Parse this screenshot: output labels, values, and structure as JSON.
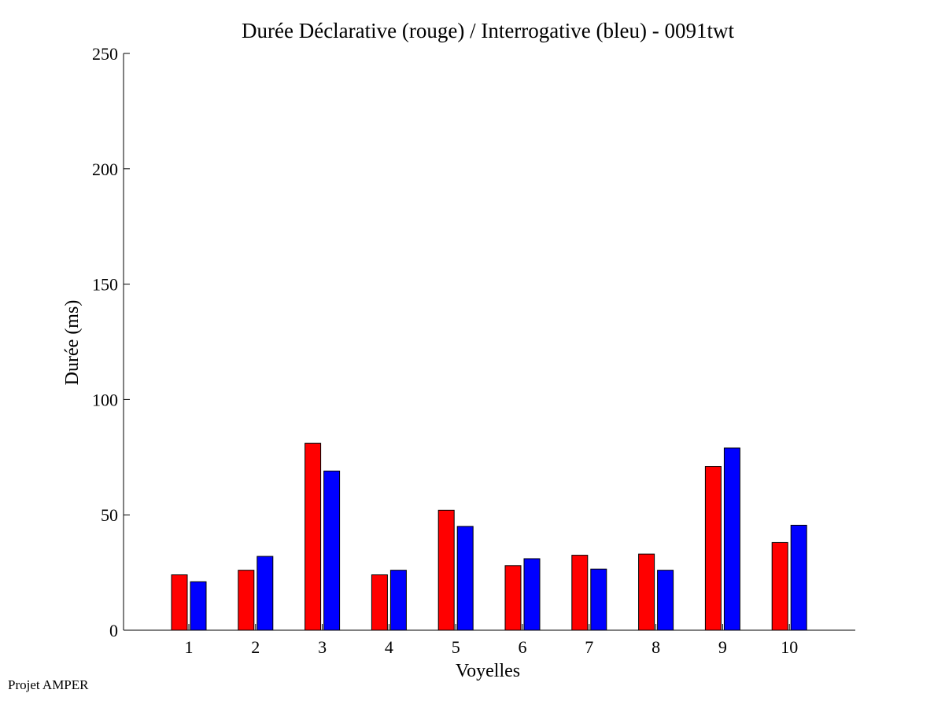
{
  "chart_data": {
    "type": "bar",
    "title": "Durée Déclarative (rouge) / Interrogative (bleu) - 0091twt",
    "xlabel": "Voyelles",
    "ylabel": "Durée (ms)",
    "categories": [
      "1",
      "2",
      "3",
      "4",
      "5",
      "6",
      "7",
      "8",
      "9",
      "10"
    ],
    "ylim": [
      0,
      250
    ],
    "yticks": [
      0,
      50,
      100,
      150,
      200,
      250
    ],
    "grid": false,
    "series": [
      {
        "color": "#ff0000",
        "values": [
          24,
          26,
          81,
          24,
          52,
          28,
          32.5,
          33,
          71,
          38
        ]
      },
      {
        "color": "#0000ff",
        "values": [
          21,
          32,
          69,
          26,
          45,
          31,
          26.5,
          26,
          79,
          45.5
        ]
      }
    ]
  },
  "footer": {
    "text": "Projet AMPER"
  }
}
